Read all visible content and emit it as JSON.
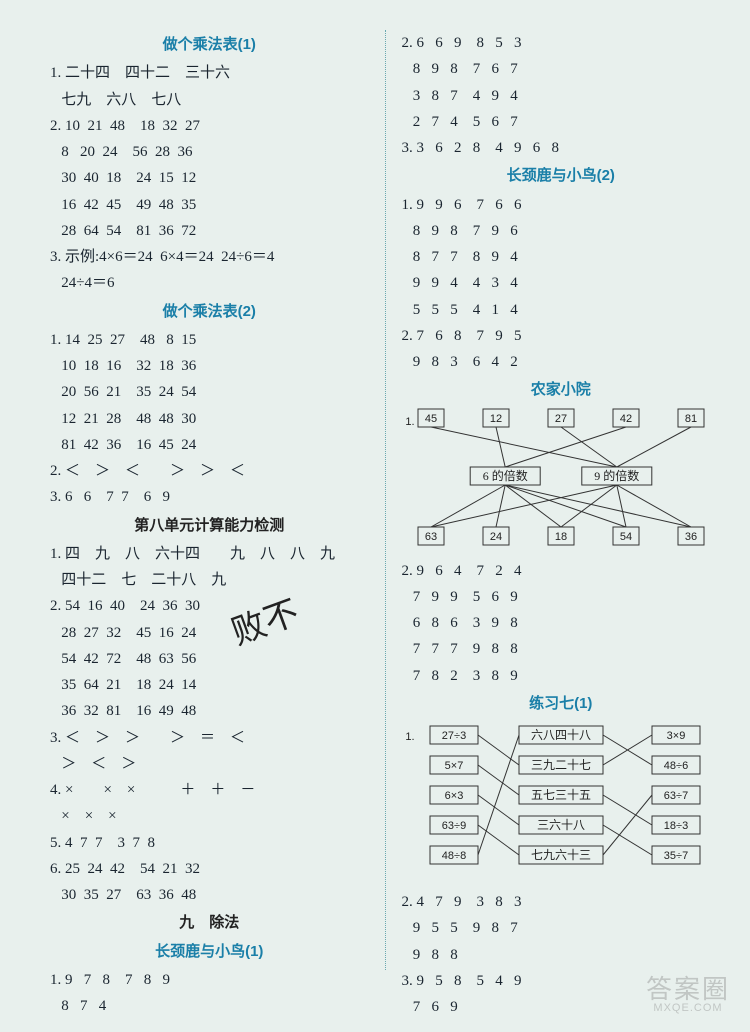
{
  "left": {
    "h1": "做个乘法表(1)",
    "s1": [
      "1. 二十四　四十二　三十六",
      "   七九　六八　七八",
      "2. 10  21  48    18  32  27",
      "   8   20  24    56  28  36",
      "   30  40  18    24  15  12",
      "   16  42  45    49  48  35",
      "   28  64  54    81  36  72",
      "3. 示例:4×6＝24  6×4＝24  24÷6＝4",
      "   24÷4＝6"
    ],
    "h2": "做个乘法表(2)",
    "s2": [
      "1. 14  25  27    48   8  15",
      "   10  18  16    32  18  36",
      "   20  56  21    35  24  54",
      "   12  21  28    48  48  30",
      "   81  42  36    16  45  24",
      "2. ＜　＞　＜　　＞　＞　＜",
      "3. 6   6    7  7    6   9"
    ],
    "h3": "第八单元计算能力检测",
    "s3": [
      "1. 四　九　八　六十四　　九　八　八　九",
      "   四十二　七　二十八　九",
      "2. 54  16  40    24  36  30",
      "   28  27  32    45  16  24",
      "   54  42  72    48  63  56",
      "   35  64  21    18  24  14",
      "   36  32  81    16  49  48",
      "3. ＜　＞　＞　　＞　＝　＜",
      "   ＞　＜　＞",
      "4. ×　　×　×　　　＋　＋　－",
      "   ×　×　×",
      "5. 4  7  7    3  7  8",
      "6. 25  24  42    54  21  32",
      "   30  35  27    63  36  48"
    ],
    "h4": "九　除法",
    "h5": "长颈鹿与小鸟(1)",
    "s4": [
      "1. 9   7   8    7   8   9",
      "   8   7   4"
    ]
  },
  "right": {
    "s1": [
      "2. 6   6   9    8   5   3",
      "   8   9   8    7   6   7",
      "   3   8   7    4   9   4",
      "   2   7   4    5   6   7",
      "3. 3   6   2   8    4   9   6   8"
    ],
    "h1": "长颈鹿与小鸟(2)",
    "s2": [
      "1. 9   9   6    7   6   6",
      "   8   9   8    7   9   6",
      "   8   7   7    8   9   4",
      "   9   9   4    4   3   4",
      "   5   5   5    4   1   4",
      "2. 7   6   8    7   9   5",
      "   9   8   3    6   4   2"
    ],
    "h2": "农家小院",
    "diagram1": {
      "top": [
        {
          "v": "45"
        },
        {
          "v": "12"
        },
        {
          "v": "27"
        },
        {
          "v": "42"
        },
        {
          "v": "81"
        }
      ],
      "mid": [
        {
          "v": "6 的倍数"
        },
        {
          "v": "9 的倍数"
        }
      ],
      "bot": [
        {
          "v": "63"
        },
        {
          "v": "24"
        },
        {
          "v": "18"
        },
        {
          "v": "54"
        },
        {
          "v": "36"
        }
      ],
      "edges_top": [
        [
          0,
          1
        ],
        [
          1,
          0
        ],
        [
          2,
          1
        ],
        [
          3,
          0
        ],
        [
          4,
          1
        ]
      ],
      "edges_bot": [
        [
          0,
          0
        ],
        [
          0,
          1
        ],
        [
          0,
          2
        ],
        [
          0,
          3
        ],
        [
          0,
          4
        ],
        [
          1,
          0
        ],
        [
          1,
          2
        ],
        [
          1,
          3
        ],
        [
          1,
          4
        ]
      ]
    },
    "s3": [
      "2. 9   6   4    7   2   4",
      "   7   9   9    5   6   9",
      "   6   8   6    3   9   8",
      "   7   7   7    9   8   8",
      "   7   8   2    3   8   9"
    ],
    "h3": "练习七(1)",
    "diagram2": {
      "left": [
        "27÷3",
        "5×7",
        "6×3",
        "63÷9",
        "48÷8"
      ],
      "mid": [
        "六八四十八",
        "三九二十七",
        "五七三十五",
        "三六十八",
        "七九六十三"
      ],
      "right": [
        "3×9",
        "48÷6",
        "63÷7",
        "18÷3",
        "35÷7"
      ],
      "edgesL": [
        [
          0,
          1
        ],
        [
          1,
          2
        ],
        [
          2,
          3
        ],
        [
          3,
          4
        ],
        [
          4,
          0
        ]
      ],
      "edgesR": [
        [
          0,
          1
        ],
        [
          1,
          0
        ],
        [
          2,
          3
        ],
        [
          3,
          4
        ],
        [
          4,
          2
        ]
      ]
    },
    "s4": [
      "2. 4   7   9    3   8   3",
      "   9   5   5    9   8   7",
      "   9   8   8",
      "3. 9   5   8    5   4   9",
      "   7   6   9"
    ]
  },
  "watermark": {
    "big": "答案圈",
    "small": "MXQE.COM"
  }
}
